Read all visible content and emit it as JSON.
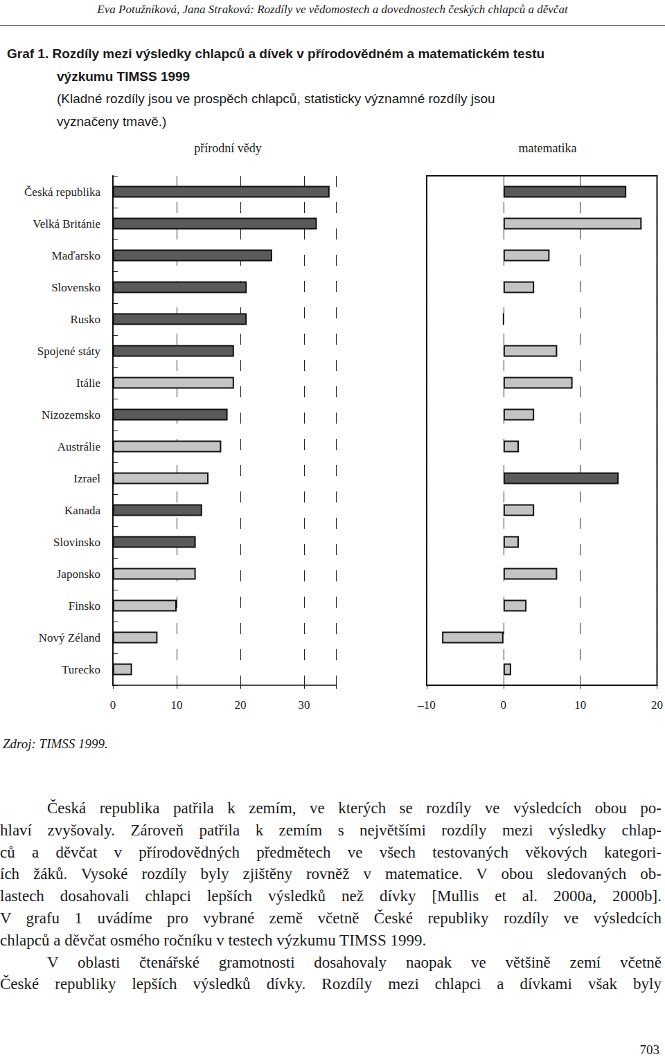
{
  "header": "Eva Potužníková, Jana Straková: Rozdíly ve vědomostech a dovednostech českých chlapců a děvčat",
  "figure": {
    "title_lines": [
      "Graf 1. Rozdíly mezi výsledky chlapců a dívek v přírodovědném a matematickém testu",
      "výzkumu TIMSS 1999"
    ],
    "subtitle_lines": [
      "(Kladné rozdíly jsou ve prospěch chlapců, statisticky významné rozdíly jsou",
      "vyznačeny tmavě.)"
    ],
    "source": "Zdroj: TIMSS 1999."
  },
  "chart_data": [
    {
      "type": "bar",
      "title": "přírodní vědy",
      "orientation": "horizontal",
      "categories": [
        "Česká republika",
        "Velká Británie",
        "Maďarsko",
        "Slovensko",
        "Rusko",
        "Spojené státy",
        "Itálie",
        "Nizozemsko",
        "Austrálie",
        "Izrael",
        "Kanada",
        "Slovinsko",
        "Japonsko",
        "Finsko",
        "Nový Zéland",
        "Turecko"
      ],
      "values": [
        34,
        32,
        25,
        21,
        21,
        19,
        19,
        18,
        17,
        15,
        14,
        13,
        13,
        10,
        7,
        3
      ],
      "colors": [
        "#5a5a5a",
        "#5a5a5a",
        "#5a5a5a",
        "#5a5a5a",
        "#5a5a5a",
        "#5a5a5a",
        "#c4c4c4",
        "#5a5a5a",
        "#c4c4c4",
        "#c4c4c4",
        "#5a5a5a",
        "#5a5a5a",
        "#c4c4c4",
        "#c4c4c4",
        "#c4c4c4",
        "#c4c4c4"
      ],
      "xlim": [
        0,
        35
      ],
      "xticks": [
        0,
        10,
        20,
        30
      ],
      "grid": true
    },
    {
      "type": "bar",
      "title": "matematika",
      "orientation": "horizontal",
      "categories": [
        "Česká republika",
        "Velká Británie",
        "Maďarsko",
        "Slovensko",
        "Rusko",
        "Spojené státy",
        "Itálie",
        "Nizozemsko",
        "Austrálie",
        "Izrael",
        "Kanada",
        "Slovinsko",
        "Japonsko",
        "Finsko",
        "Nový Zéland",
        "Turecko"
      ],
      "values": [
        16,
        18,
        6,
        4,
        0,
        7,
        9,
        4,
        2,
        15,
        4,
        2,
        7,
        3,
        -8,
        1
      ],
      "colors": [
        "#5a5a5a",
        "#c4c4c4",
        "#c4c4c4",
        "#c4c4c4",
        "#c4c4c4",
        "#c4c4c4",
        "#c4c4c4",
        "#c4c4c4",
        "#c4c4c4",
        "#5a5a5a",
        "#c4c4c4",
        "#c4c4c4",
        "#c4c4c4",
        "#c4c4c4",
        "#c4c4c4",
        "#c4c4c4"
      ],
      "xlim": [
        -10,
        20
      ],
      "xticks": [
        {
          "value": -10,
          "label": "–10"
        },
        0,
        10,
        20
      ],
      "grid": true,
      "tick_labels": "x"
    }
  ],
  "body": {
    "paragraphs": [
      [
        "Česká republika patřila k zemím, ve kterých se rozdíly ve výsledcích obou po-",
        "hlaví zvyšovaly. Zároveň patřila k zemím s největšími rozdíly mezi výsledky chlap-",
        "ců a děvčat v přírodovědných předmětech ve všech testovaných věkových kategori-",
        "ích žáků. Vysoké rozdíly byly zjištěny rovněž v matematice. V obou sledovaných ob-",
        "lastech dosahovali chlapci lepších výsledků než dívky [Mullis et al. 2000a, 2000b].",
        "V grafu 1 uvádíme pro vybrané země včetně České republiky rozdíly ve výsledcích",
        "chlapců a děvčat osmého ročníku v testech výzkumu TIMSS 1999."
      ],
      [
        "V oblasti čtenářské gramotnosti dosahovaly naopak ve většině zemí včetně",
        "České republiky lepších výsledků dívky. Rozdíly mezi chlapci a dívkami však byly"
      ]
    ]
  },
  "page_number": "703"
}
